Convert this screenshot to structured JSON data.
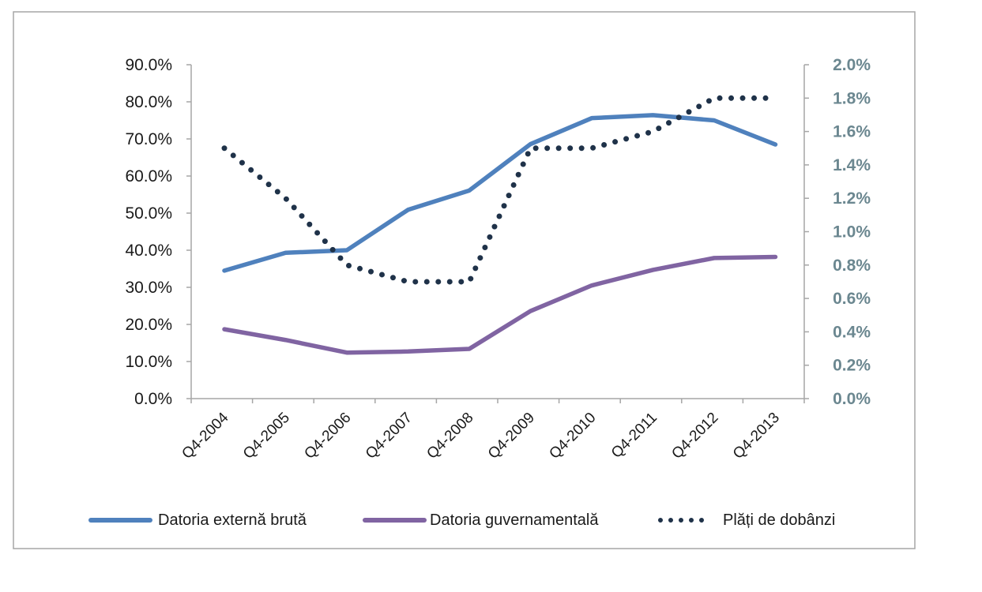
{
  "chart_data": {
    "type": "line",
    "title": "",
    "categories": [
      "Q4-2004",
      "Q4-2005",
      "Q4-2006",
      "Q4-2007",
      "Q4-2008",
      "Q4-2009",
      "Q4-2010",
      "Q4-2011",
      "Q4-2012",
      "Q4-2013"
    ],
    "y_left": {
      "range": [
        0,
        90
      ],
      "tick_labels": [
        "0.0%",
        "10.0%",
        "20.0%",
        "30.0%",
        "40.0%",
        "50.0%",
        "60.0%",
        "70.0%",
        "80.0%",
        "90.0%"
      ]
    },
    "y_right": {
      "range": [
        0,
        2.0
      ],
      "tick_labels": [
        "0.0%",
        "0.2%",
        "0.4%",
        "0.6%",
        "0.8%",
        "1.0%",
        "1.2%",
        "1.4%",
        "1.6%",
        "1.8%",
        "2.0%"
      ]
    },
    "series": [
      {
        "name": "Datoria externă brută",
        "axis": "left",
        "style": "solid",
        "color": "#4f81bd",
        "values": [
          34.5,
          39.3,
          40.0,
          50.9,
          56.1,
          68.6,
          75.6,
          76.4,
          75.0,
          68.5
        ]
      },
      {
        "name": "Datoria guvernamentală",
        "axis": "left",
        "style": "solid",
        "color": "#8064a2",
        "values": [
          18.7,
          15.8,
          12.4,
          12.7,
          13.4,
          23.6,
          30.5,
          34.7,
          37.9,
          38.2
        ]
      },
      {
        "name": "Plăți de dobânzi",
        "axis": "right",
        "style": "dotted",
        "color": "#1f3249",
        "values": [
          1.5,
          1.2,
          0.8,
          0.7,
          0.7,
          1.5,
          1.5,
          1.6,
          1.8,
          1.8
        ]
      }
    ],
    "grid": false,
    "legend_position": "bottom"
  }
}
